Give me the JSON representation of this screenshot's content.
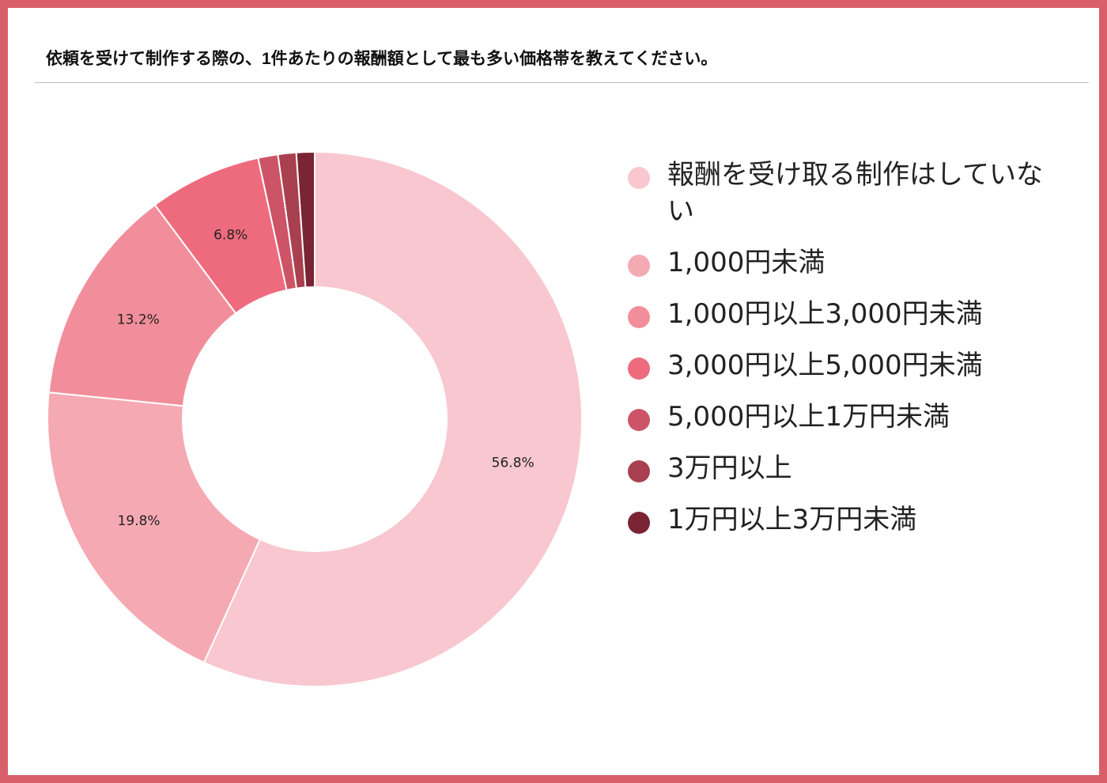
{
  "chart_data": {
    "type": "pie",
    "donut": true,
    "title": "依頼を受けて制作する際の、1件あたりの報酬額として最も多い価格帯を教えてください。",
    "legend_position": "right",
    "slices": [
      {
        "label": "報酬を受け取る制作はしていない",
        "value": 56.8,
        "data_label": "56.8%",
        "color": "#f8c7cf"
      },
      {
        "label": "1,000円未満",
        "value": 19.8,
        "data_label": "19.8%",
        "color": "#f5a9b3"
      },
      {
        "label": "1,000円以上3,000円未満",
        "value": 13.2,
        "data_label": "13.2%",
        "color": "#f28e9b"
      },
      {
        "label": "3,000円以上5,000円未満",
        "value": 6.8,
        "data_label": "6.8%",
        "color": "#ee6b7e"
      },
      {
        "label": "5,000円以上1万円未満",
        "value": 1.2,
        "data_label": "",
        "color": "#cc5466"
      },
      {
        "label": "3万円以上",
        "value": 1.1,
        "data_label": "",
        "color": "#a8404f"
      },
      {
        "label": "1万円以上3万円未満",
        "value": 1.1,
        "data_label": "",
        "color": "#7a2434"
      }
    ]
  }
}
